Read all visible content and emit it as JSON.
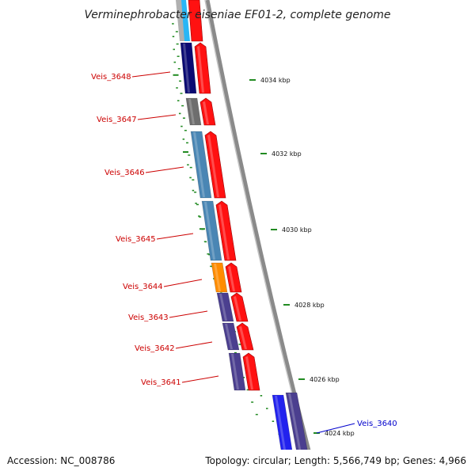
{
  "title": "Verminephrobacter eiseniae EF01-2, complete genome",
  "footer": {
    "accession": "Accession: NC_008786",
    "topology": "Topology: circular; Length: 5,566,749 bp; Genes: 4,966"
  },
  "colors": {
    "forward_cds": "#ff1111",
    "backbone": "#8a8a8a",
    "tick": "#228b22",
    "label_minus": "#cc0000",
    "label_plus": "#0000cc"
  },
  "scale_labels": [
    "4034 kbp",
    "4032 kbp",
    "4030 kbp",
    "4028 kbp",
    "4026 kbp",
    "4024 kbp"
  ],
  "genes": [
    {
      "name": "Veis_3648",
      "color": "#0b0b73"
    },
    {
      "name": "Veis_3647",
      "color": "#6e6e6e"
    },
    {
      "name": "Veis_3646",
      "color": "#4a86b4"
    },
    {
      "name": "Veis_3645",
      "color": "#4a86b4"
    },
    {
      "name": "Veis_3644",
      "color": "#ff8c00"
    },
    {
      "name": "Veis_3643",
      "color": "#4b3f8f"
    },
    {
      "name": "Veis_3642",
      "color": "#4b3f8f"
    },
    {
      "name": "Veis_3641",
      "color": "#4b3f8f"
    },
    {
      "name": "Veis_3640",
      "color": "#2222ee"
    }
  ]
}
